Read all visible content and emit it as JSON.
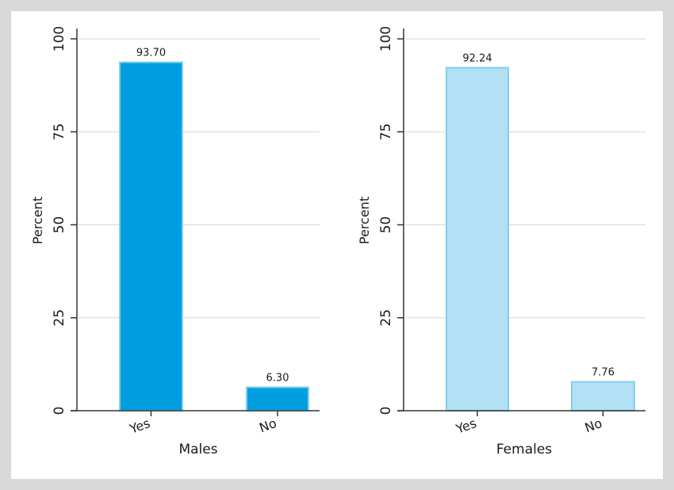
{
  "chart_data": [
    {
      "type": "bar",
      "title": "",
      "xlabel": "Males",
      "ylabel": "Percent",
      "ylim": [
        0,
        100
      ],
      "yticks": [
        0,
        25,
        50,
        75,
        100
      ],
      "categories": [
        "Yes",
        "No"
      ],
      "values": [
        93.7,
        6.3
      ],
      "value_labels": [
        "93.70",
        "6.30"
      ],
      "grid": true,
      "bar_color": "#009ee0",
      "bar_edge_color": "#7fcff0"
    },
    {
      "type": "bar",
      "title": "",
      "xlabel": "Females",
      "ylabel": "Percent",
      "ylim": [
        0,
        100
      ],
      "yticks": [
        0,
        25,
        50,
        75,
        100
      ],
      "categories": [
        "Yes",
        "No"
      ],
      "values": [
        92.24,
        7.76
      ],
      "value_labels": [
        "92.24",
        "7.76"
      ],
      "grid": true,
      "bar_color": "#b3e0f5",
      "bar_edge_color": "#7fcff0"
    }
  ]
}
